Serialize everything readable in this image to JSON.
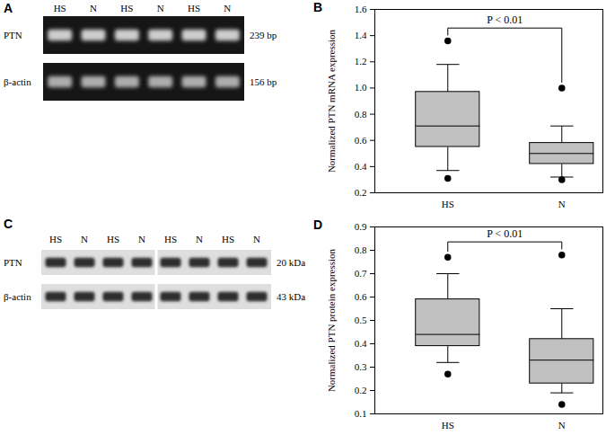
{
  "gels": [
    {
      "title": "A",
      "type": "gel",
      "lanes": [
        "HS",
        "N",
        "HS",
        "N",
        "HS",
        "N"
      ],
      "rows": [
        {
          "name": "PTN",
          "size": "239 bp"
        },
        {
          "name": "β-actin",
          "size": "156 bp"
        }
      ]
    },
    {
      "title": "C",
      "type": "blot",
      "lanes": [
        "HS",
        "N",
        "HS",
        "N",
        "HS",
        "N",
        "HS",
        "N"
      ],
      "rows": [
        {
          "name": "PTN",
          "size": "20 kDa"
        },
        {
          "name": "β-actin",
          "size": "43 kDa"
        }
      ]
    }
  ],
  "chart_data": [
    {
      "type": "box",
      "title": "B",
      "categories": [
        "HS",
        "N"
      ],
      "boxes": [
        {
          "whislo": 0.37,
          "q1": 0.55,
          "med": 0.71,
          "q3": 0.97,
          "whishi": 1.18,
          "fliers": [
            0.31,
            1.36
          ]
        },
        {
          "whislo": 0.32,
          "q1": 0.42,
          "med": 0.5,
          "q3": 0.58,
          "whishi": 0.71,
          "fliers": [
            0.3,
            1.0
          ]
        }
      ],
      "color": "#c0c0c0",
      "ylabel": "Normalized PTN mRNA expression",
      "ylim": [
        0.2,
        1.6
      ],
      "yticks": [
        0.2,
        0.4,
        0.6,
        0.8,
        {
          "value": 1,
          "label": "1.0"
        },
        1.2,
        1.4,
        1.6
      ],
      "annotations": [
        {
          "text": "P < 0.01",
          "from": "HS",
          "to": "N"
        }
      ]
    },
    {
      "type": "box",
      "title": "D",
      "categories": [
        "HS",
        "N"
      ],
      "boxes": [
        {
          "whislo": 0.32,
          "q1": 0.39,
          "med": 0.44,
          "q3": 0.59,
          "whishi": 0.7,
          "fliers": [
            0.27,
            0.77
          ]
        },
        {
          "whislo": 0.19,
          "q1": 0.23,
          "med": 0.33,
          "q3": 0.42,
          "whishi": 0.55,
          "fliers": [
            0.14,
            0.78
          ]
        }
      ],
      "color": "#c0c0c0",
      "ylabel": "Normalized PTN protein expression",
      "ylim": [
        0.1,
        0.9
      ],
      "yticks": [
        0.1,
        0.2,
        0.3,
        0.4,
        0.5,
        0.6,
        0.7,
        0.8,
        0.9
      ],
      "annotations": [
        {
          "text": "P < 0.01",
          "from": "HS",
          "to": "N"
        }
      ]
    }
  ]
}
